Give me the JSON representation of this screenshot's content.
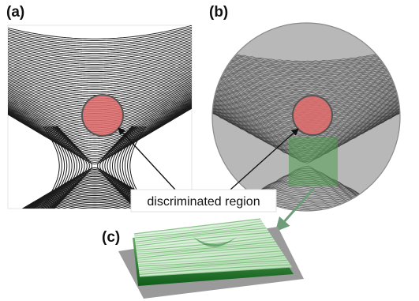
{
  "panels": {
    "a": {
      "label": "(a)"
    },
    "b": {
      "label": "(b)"
    },
    "c": {
      "label": "(c)"
    }
  },
  "callout": {
    "text": "discriminated region"
  },
  "colors": {
    "region_fill": "#e06b6b",
    "region_stroke": "#555555",
    "green_patch": "#4f9a4f",
    "green_arrow": "#6f9d7a",
    "surface_top": "#dff2df",
    "surface_side": "#0f6b1a",
    "base_plate": "#9a9a9a"
  }
}
